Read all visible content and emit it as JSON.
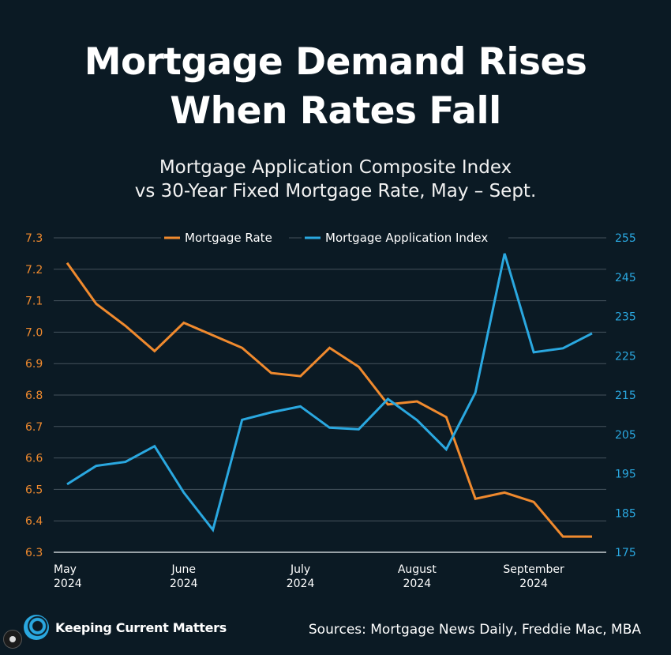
{
  "header": {
    "title_line1": "Mortgage Demand Rises",
    "title_line2": "When Rates Fall",
    "subtitle_line1": "Mortgage Application Composite Index",
    "subtitle_line2": "vs 30-Year Fixed Mortgage Rate, May – Sept."
  },
  "footer": {
    "brand": "Keeping Current Matters",
    "brand_icon": "kcm-logo-icon",
    "sources": "Sources: Mortgage News Daily, Freddie Mac, MBA",
    "corner_icon": "user-icon"
  },
  "colors": {
    "background": "#0b1a24",
    "rate": "#f08a2e",
    "index": "#2aa8e0",
    "grid": "#5a6670"
  },
  "chart_data": {
    "type": "line",
    "legend_position": "top-center",
    "grid": true,
    "x_ticks": [
      {
        "x": 0,
        "line1": "May",
        "line2": "2024"
      },
      {
        "x": 4,
        "line1": "June",
        "line2": "2024"
      },
      {
        "x": 8,
        "line1": "July",
        "line2": "2024"
      },
      {
        "x": 12,
        "line1": "August",
        "line2": "2024"
      },
      {
        "x": 16,
        "line1": "September",
        "line2": "2024"
      }
    ],
    "y_left": {
      "ylim": [
        6.3,
        7.3
      ],
      "ticks": [
        "6.3",
        "6.4",
        "6.5",
        "6.6",
        "6.7",
        "6.8",
        "6.9",
        "7.0",
        "7.1",
        "7.2",
        "7.3"
      ]
    },
    "y_right": {
      "ylim": [
        175,
        255
      ],
      "ticks": [
        "175",
        "185",
        "195",
        "205",
        "215",
        "225",
        "235",
        "245",
        "255"
      ]
    },
    "series": [
      {
        "name": "Mortgage Rate",
        "axis": "left",
        "values": [
          7.22,
          7.09,
          7.02,
          6.94,
          7.03,
          6.99,
          6.95,
          6.87,
          6.86,
          6.95,
          6.89,
          6.77,
          6.78,
          6.73,
          6.47,
          6.49,
          6.46,
          6.35,
          6.35
        ]
      },
      {
        "name": "Mortgage Application Index",
        "axis": "right",
        "values": [
          192.3,
          197.0,
          198.0,
          202.0,
          190.2,
          180.7,
          208.7,
          210.6,
          212.1,
          206.7,
          206.3,
          214.0,
          208.6,
          201.2,
          215.6,
          251.0,
          225.9,
          226.9,
          230.7
        ]
      }
    ]
  }
}
